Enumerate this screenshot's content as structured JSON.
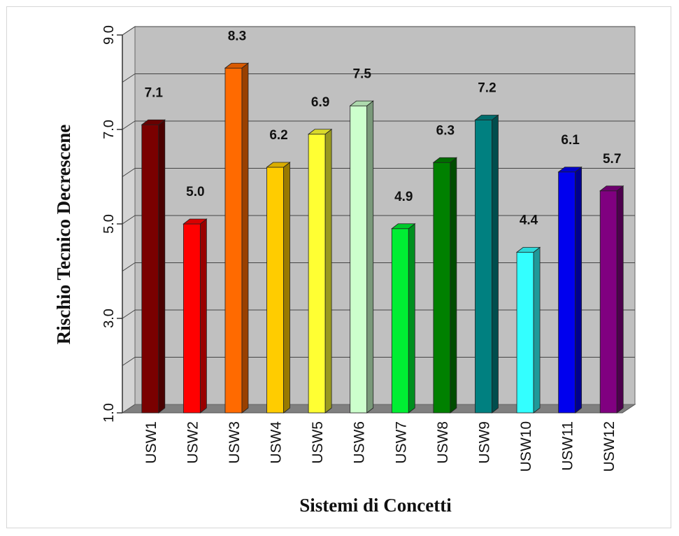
{
  "chart_data": {
    "type": "bar",
    "style": "3d",
    "xlabel": "Sistemi di Concetti",
    "ylabel": "Rischio Tecnico Decrescene",
    "ylim": [
      1.0,
      9.0
    ],
    "yticks": [
      "1.0",
      "3.0",
      "5.0",
      "7.0",
      "9.0"
    ],
    "grid": true,
    "categories": [
      "USW1",
      "USW2",
      "USW3",
      "USW4",
      "USW5",
      "USW6",
      "USW7",
      "USW8",
      "USW9",
      "USW10",
      "USW11",
      "USW12"
    ],
    "values": [
      7.1,
      5.0,
      8.3,
      6.2,
      6.9,
      7.5,
      4.9,
      6.3,
      7.2,
      4.4,
      6.1,
      5.7
    ],
    "value_labels": [
      "7.1",
      "5.0",
      "8.3",
      "6.2",
      "6.9",
      "7.5",
      "4.9",
      "6.3",
      "7.2",
      "4.4",
      "6.1",
      "5.7"
    ],
    "colors": [
      "#7a0000",
      "#ff0000",
      "#ff6a00",
      "#ffcc00",
      "#ffff33",
      "#ccffcc",
      "#00ee33",
      "#008000",
      "#008080",
      "#33ffff",
      "#0000ee",
      "#800080"
    ],
    "wall_color": "#c0c0c0",
    "floor_color": "#808080"
  }
}
